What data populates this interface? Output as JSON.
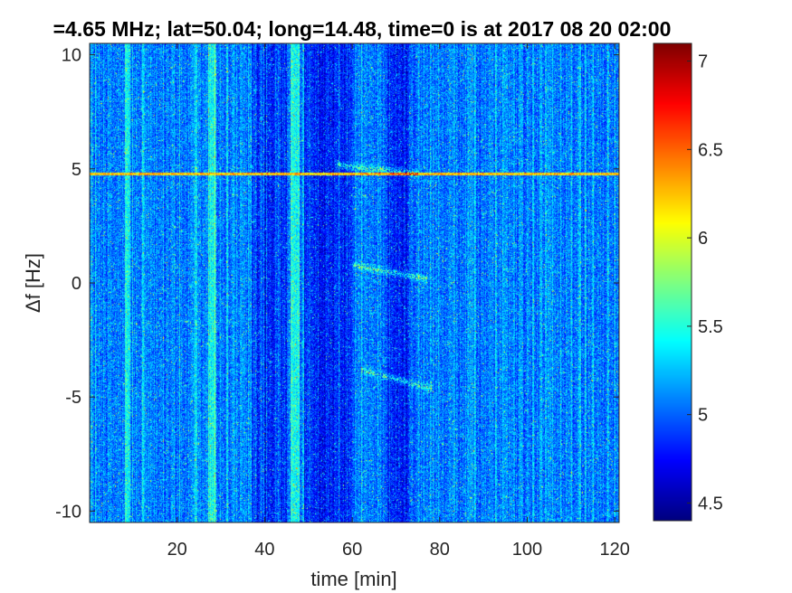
{
  "chart_data": {
    "type": "heatmap",
    "title": "=4.65 MHz;  lat=50.04; long=14.48, time=0 is at 2017 08 20 02:00",
    "xlabel": "time [min]",
    "ylabel": "Δf [Hz]",
    "xlim": [
      0,
      121
    ],
    "ylim": [
      -10.5,
      10.5
    ],
    "x_ticks": [
      20,
      40,
      60,
      80,
      100,
      120
    ],
    "x_tick_labels": [
      "20",
      "40",
      "60",
      "80",
      "100",
      "120"
    ],
    "y_ticks": [
      10,
      5,
      0,
      -5,
      -10
    ],
    "y_tick_labels": [
      "10",
      "5",
      "0",
      "-5",
      "-10"
    ],
    "colorbar": {
      "range": [
        4.4,
        7.1
      ],
      "ticks": [
        7,
        6.5,
        6,
        5.5,
        5,
        4.5
      ],
      "tick_labels": [
        "7",
        "6.5",
        "6",
        "5.5",
        "5",
        "4.5"
      ],
      "colormap": "jet"
    },
    "features": {
      "carrier_line_hz": 4.8,
      "traces": [
        {
          "from": [
            56,
            5.2
          ],
          "to": [
            75,
            4.8
          ]
        },
        {
          "from": [
            60,
            0.8
          ],
          "to": [
            77,
            0.2
          ]
        },
        {
          "from": [
            62,
            -3.8
          ],
          "to": [
            78,
            -4.6
          ]
        }
      ],
      "dark_bands_min": [
        [
          37,
          45
        ],
        [
          49,
          60
        ],
        [
          68,
          73
        ]
      ],
      "bright_bands_min": [
        [
          27,
          29
        ],
        [
          46,
          48
        ],
        [
          8,
          9
        ]
      ]
    },
    "grid": false
  }
}
